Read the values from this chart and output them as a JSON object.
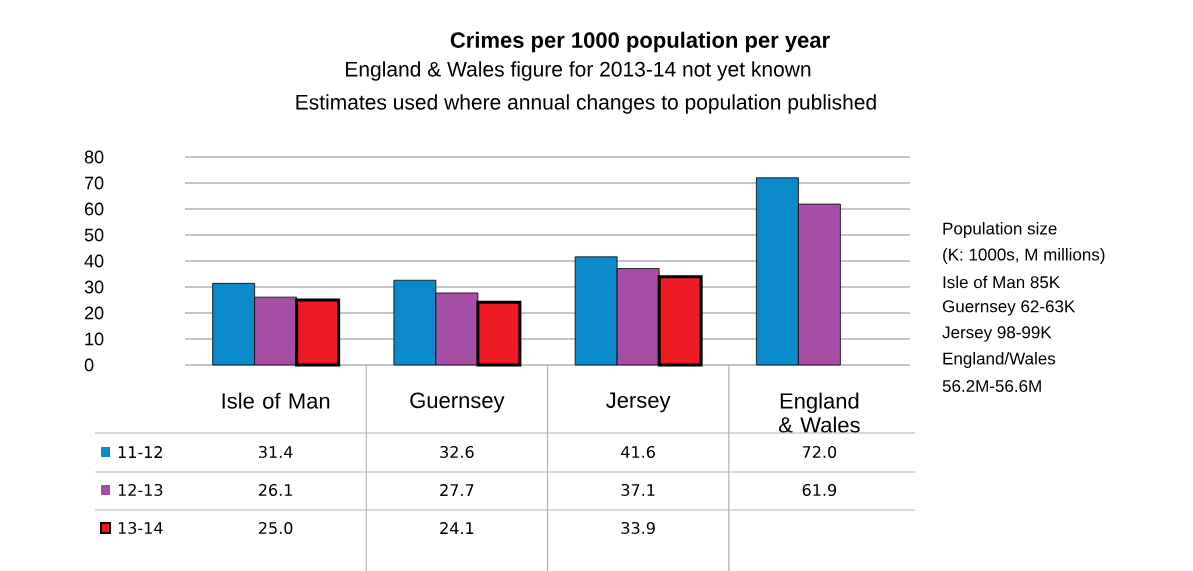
{
  "chart_data": {
    "type": "bar",
    "title": "Crimes per 1000 population per year",
    "subtitle": "England & Wales figure for 2013-14 not yet known",
    "categories": [
      "Isle of Man",
      "Guernsey",
      "Jersey",
      "England & Wales"
    ],
    "series": [
      {
        "name": "11-12",
        "color": "#0a8acb",
        "values": [
          31.4,
          32.6,
          41.6,
          72.0
        ],
        "value_labels": [
          "31.4",
          "32.6",
          "41.6",
          "72.0"
        ]
      },
      {
        "name": "12-13",
        "color": "#a64ea6",
        "values": [
          26.1,
          27.7,
          37.1,
          61.9
        ],
        "value_labels": [
          "26.1",
          "27.7",
          "37.1",
          "61.9"
        ]
      },
      {
        "name": "13-14",
        "color": "#ed1c24",
        "values": [
          25.0,
          24.1,
          33.9,
          null
        ],
        "value_labels": [
          "25.0",
          "24.1",
          "33.9",
          null
        ]
      }
    ],
    "ylim": [
      0,
      80
    ],
    "yticks": [
      0,
      10,
      20,
      30,
      40,
      50,
      60,
      70,
      80
    ],
    "grid": "y",
    "legend": "bottom",
    "annotations": [
      "Estimates used where annual changes to population published",
      "Population size",
      "(K: 1000s, M millions)",
      "Isle of Man 85K",
      "Guernsey 62-63K",
      "Jersey 98-99K",
      "England/Wales",
      "56.2M-56.6M"
    ]
  }
}
